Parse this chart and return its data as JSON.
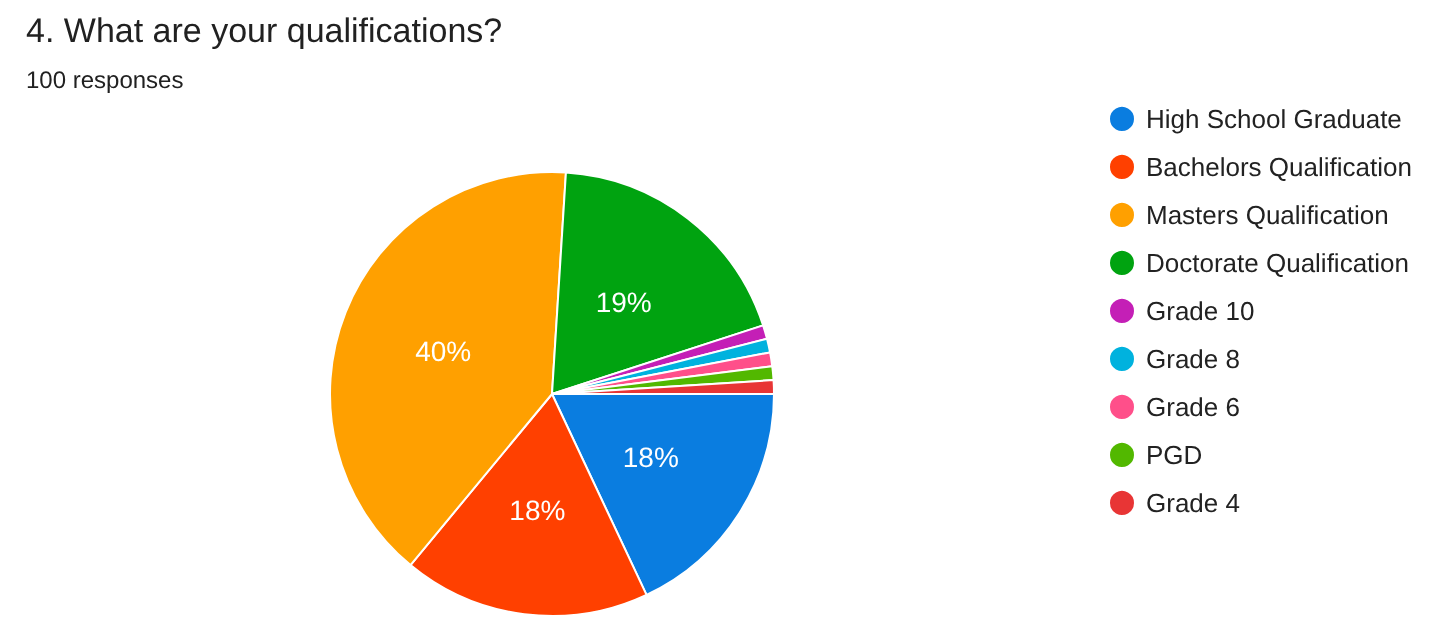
{
  "chart_data": {
    "type": "pie",
    "title": "4. What are your qualifications?",
    "subtitle": "100 responses",
    "categories": [
      "High School Graduate",
      "Bachelors Qualification",
      "Masters Qualification",
      "Doctorate Qualification",
      "Grade 10",
      "Grade 8",
      "Grade 6",
      "PGD",
      "Grade 4"
    ],
    "values": [
      18,
      18,
      40,
      19,
      1,
      1,
      1,
      1,
      1
    ],
    "colors": [
      "#0a7de0",
      "#ff4000",
      "#ffa000",
      "#00a310",
      "#c41fb6",
      "#00b2de",
      "#ff4f8a",
      "#52b800",
      "#e83535"
    ],
    "value_labels": [
      "18%",
      "18%",
      "40%",
      "19%",
      null,
      null,
      null,
      null,
      null
    ],
    "legend": "right"
  }
}
